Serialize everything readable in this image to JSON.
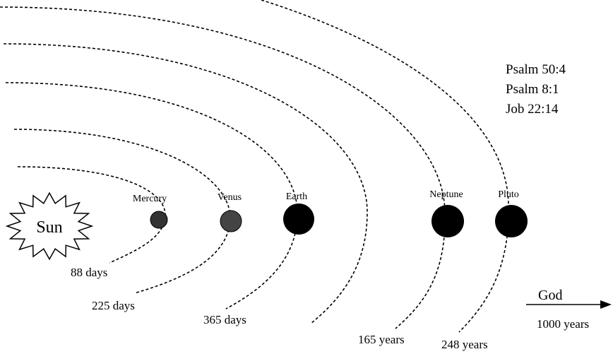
{
  "sun": "Sun",
  "planets": [
    {
      "name": "Mercury",
      "period": "88 days"
    },
    {
      "name": "Venus",
      "period": "225 days"
    },
    {
      "name": "Earth",
      "period": "365 days"
    },
    {
      "name": "Neptune",
      "period": "165 years"
    },
    {
      "name": "Pluto",
      "period": "248 years"
    }
  ],
  "references": [
    "Psalm 50:4",
    "Psalm 8:1",
    "Job 22:14"
  ],
  "god": {
    "label": "God",
    "period": "1000 years"
  }
}
